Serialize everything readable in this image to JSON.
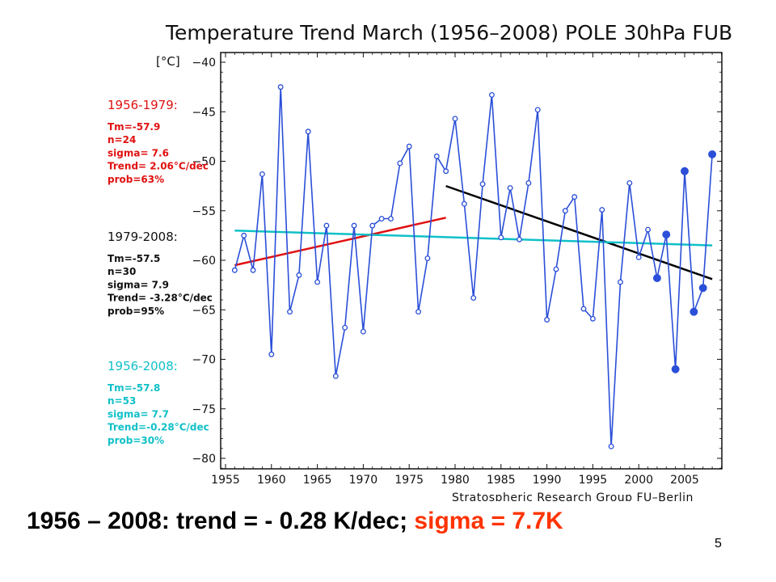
{
  "chart_data": {
    "type": "line",
    "title": "Temperature Trend March (1956–2008) POLE 30hPa FUB",
    "ylabel": "[°C]",
    "xlabel": "",
    "credit": "Stratospheric Research Group FU–Berlin",
    "xlim": [
      1955,
      2009
    ],
    "ylim": [
      -81,
      -38
    ],
    "x_ticks": [
      1955,
      1960,
      1965,
      1970,
      1975,
      1980,
      1985,
      1990,
      1995,
      2000,
      2005
    ],
    "y_ticks": [
      -40,
      -45,
      -50,
      -55,
      -60,
      -65,
      -70,
      -75,
      -80
    ],
    "grid": false,
    "series": [
      {
        "color": "#2b4fd8",
        "points": [
          [
            1956,
            -61.0
          ],
          [
            1957,
            -57.5
          ],
          [
            1958,
            -61.0
          ],
          [
            1959,
            -51.3
          ],
          [
            1960,
            -69.5
          ],
          [
            1961,
            -42.5
          ],
          [
            1962,
            -65.2
          ],
          [
            1963,
            -61.5
          ],
          [
            1964,
            -47.0
          ],
          [
            1965,
            -62.2
          ],
          [
            1966,
            -56.5
          ],
          [
            1967,
            -71.7
          ],
          [
            1968,
            -66.8
          ],
          [
            1969,
            -56.5
          ],
          [
            1970,
            -67.2
          ],
          [
            1971,
            -56.5
          ],
          [
            1972,
            -55.8
          ],
          [
            1973,
            -55.8
          ],
          [
            1974,
            -50.2
          ],
          [
            1975,
            -48.5
          ],
          [
            1976,
            -65.2
          ],
          [
            1977,
            -59.8
          ],
          [
            1978,
            -49.5
          ],
          [
            1979,
            -51.0
          ],
          [
            1980,
            -45.7
          ],
          [
            1981,
            -54.3
          ],
          [
            1982,
            -63.8
          ],
          [
            1983,
            -52.3
          ],
          [
            1984,
            -43.3
          ],
          [
            1985,
            -57.7
          ],
          [
            1986,
            -52.7
          ],
          [
            1987,
            -57.9
          ],
          [
            1988,
            -52.2
          ],
          [
            1989,
            -44.8
          ],
          [
            1990,
            -66.0
          ],
          [
            1991,
            -60.9
          ],
          [
            1992,
            -55.0
          ],
          [
            1993,
            -53.6
          ],
          [
            1994,
            -64.9
          ],
          [
            1995,
            -65.9
          ],
          [
            1996,
            -54.9
          ],
          [
            1997,
            -78.8
          ],
          [
            1998,
            -62.2
          ],
          [
            1999,
            -52.2
          ],
          [
            2000,
            -59.7
          ],
          [
            2001,
            -56.9
          ],
          [
            2002,
            -61.8
          ],
          [
            2003,
            -57.4
          ],
          [
            2004,
            -71.0
          ],
          [
            2005,
            -51.0
          ],
          [
            2006,
            -65.2
          ],
          [
            2007,
            -62.8
          ],
          [
            2008,
            -49.3
          ]
        ],
        "filled_from_year": 2002
      }
    ],
    "trend_lines": [
      {
        "color": "#e01010",
        "from": [
          1956,
          -60.5
        ],
        "to": [
          1979,
          -55.7
        ]
      },
      {
        "color": "#000000",
        "from": [
          1979,
          -52.5
        ],
        "to": [
          2008,
          -61.9
        ]
      },
      {
        "color": "#10c0c8",
        "from": [
          1956,
          -57.0
        ],
        "to": [
          2008,
          -58.5
        ]
      }
    ],
    "annotations": [
      {
        "color": "#e01010",
        "heading": "1956-1979:",
        "lines": [
          "Tm=-57.9",
          "n=24",
          "sigma= 7.6",
          "Trend= 2.06°C/dec",
          "prob=63%"
        ]
      },
      {
        "color": "#111111",
        "heading": "1979-2008:",
        "lines": [
          "Tm=-57.5",
          "n=30",
          "sigma= 7.9",
          "Trend= -3.28°C/dec",
          "prob=95%"
        ]
      },
      {
        "color": "#10c0c8",
        "heading": "1956-2008:",
        "lines": [
          "Tm=-57.8",
          "n=53",
          "sigma= 7.7",
          "Trend=-0.28°C/dec",
          "prob=30%"
        ]
      }
    ]
  },
  "caption": {
    "main": "1956 – 2008: trend = - 0.28 K/dec; ",
    "highlight": "sigma = 7.7K"
  },
  "page_number": "5"
}
